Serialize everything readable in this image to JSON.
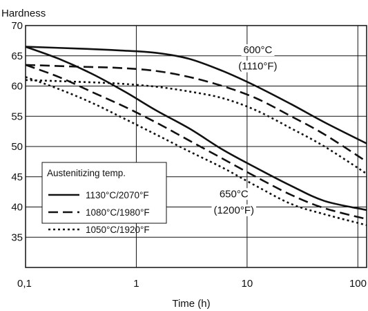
{
  "chart_data": {
    "type": "line",
    "ylabel": "Hardness",
    "xlabel": "Time (h)",
    "x_scale": "log",
    "xlim": [
      0.1,
      120
    ],
    "ylim": [
      30,
      70
    ],
    "x_ticks": [
      {
        "value": 0.1,
        "label": "0,1"
      },
      {
        "value": 1,
        "label": "1"
      },
      {
        "value": 10,
        "label": "10"
      },
      {
        "value": 100,
        "label": "100"
      }
    ],
    "y_ticks": [
      {
        "value": 35,
        "label": "35"
      },
      {
        "value": 40,
        "label": "40"
      },
      {
        "value": 45,
        "label": "45"
      },
      {
        "value": 50,
        "label": "50"
      },
      {
        "value": 55,
        "label": "55"
      },
      {
        "value": 60,
        "label": "60"
      },
      {
        "value": 65,
        "label": "65"
      },
      {
        "value": 70,
        "label": "70"
      }
    ],
    "grid": true,
    "legend": {
      "title": "Austenitizing temp.",
      "placement": "bottom-left",
      "entries": [
        {
          "label": "1130°C/2070°F",
          "style": "solid"
        },
        {
          "label": "1080°C/1980°F",
          "style": "dashed"
        },
        {
          "label": "1050°C/1920°F",
          "style": "dotted"
        }
      ]
    },
    "annotations": [
      {
        "line1": "600°C",
        "line2": "(1110°F)",
        "x": 12.5,
        "y1": 66,
        "y2": 63.3
      },
      {
        "line1": "650°C",
        "line2": "(1200°F)",
        "x": 7.6,
        "y1": 42.2,
        "y2": 39.5
      }
    ],
    "series": [
      {
        "group": "600°C",
        "style": "solid",
        "x": [
          0.1,
          0.3,
          0.7,
          1.5,
          3,
          6,
          12,
          25,
          50,
          120
        ],
        "y": [
          66.5,
          66.2,
          65.9,
          65.5,
          64.5,
          62.5,
          60,
          57,
          54,
          50.5
        ]
      },
      {
        "group": "600°C",
        "style": "dashed",
        "x": [
          0.1,
          0.3,
          0.7,
          1.5,
          3,
          6,
          12,
          25,
          50,
          120
        ],
        "y": [
          63.5,
          63.2,
          63,
          62.5,
          61.5,
          60,
          58,
          55,
          52,
          47.5
        ]
      },
      {
        "group": "600°C",
        "style": "dotted",
        "x": [
          0.1,
          0.3,
          0.7,
          1.5,
          3,
          6,
          12,
          25,
          50,
          120
        ],
        "y": [
          61,
          60.7,
          60.4,
          59.9,
          59.1,
          58,
          56,
          53,
          50,
          45.5
        ]
      },
      {
        "group": "650°C",
        "style": "solid",
        "x": [
          0.1,
          0.2,
          0.4,
          0.8,
          1.5,
          3,
          6,
          12,
          25,
          50,
          120
        ],
        "y": [
          66.5,
          64.5,
          62,
          59,
          56,
          53,
          49.5,
          46.5,
          43.5,
          41,
          39.5
        ]
      },
      {
        "group": "650°C",
        "style": "dashed",
        "x": [
          0.1,
          0.2,
          0.4,
          0.8,
          1.5,
          3,
          6,
          12,
          25,
          50,
          120
        ],
        "y": [
          63.5,
          61.5,
          59,
          56.5,
          54,
          51,
          48,
          45,
          42,
          39.8,
          38
        ]
      },
      {
        "group": "650°C",
        "style": "dotted",
        "x": [
          0.1,
          0.2,
          0.4,
          0.8,
          1.5,
          3,
          6,
          12,
          25,
          50,
          120
        ],
        "y": [
          61.5,
          59.5,
          57.2,
          54.5,
          52,
          49.2,
          46.5,
          43.5,
          40.5,
          38.8,
          37
        ]
      }
    ]
  }
}
